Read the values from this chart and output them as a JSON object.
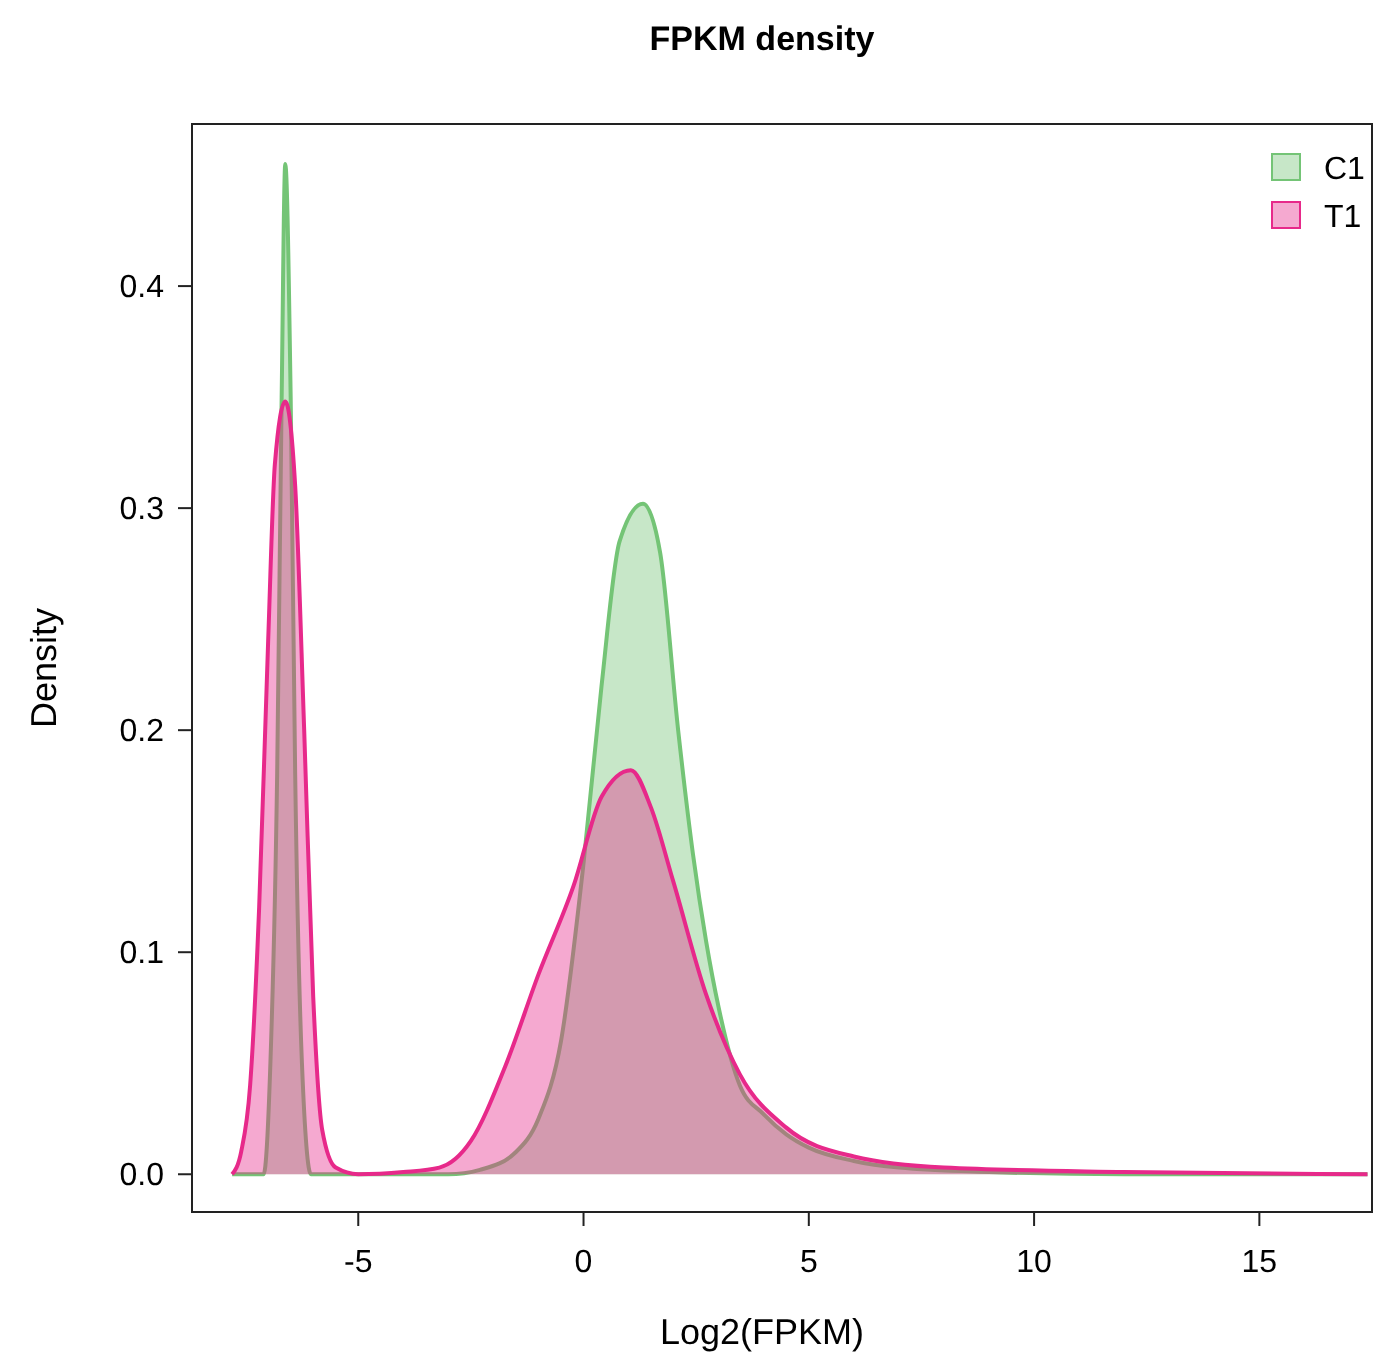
{
  "chart_data": {
    "type": "area",
    "title": "FPKM density",
    "xlabel": "Log2(FPKM)",
    "ylabel": "Density",
    "xlim": [
      -8.69,
      17.5
    ],
    "ylim": [
      -0.017,
      0.473
    ],
    "xticks": [
      -5,
      0,
      5,
      10,
      15
    ],
    "yticks": [
      {
        "value": 0,
        "label": "0.0"
      },
      {
        "value": 0.1,
        "label": "0.1"
      },
      {
        "value": 0.2,
        "label": "0.2"
      },
      {
        "value": 0.3,
        "label": "0.3"
      },
      {
        "value": 0.4,
        "label": "0.4"
      }
    ],
    "grid": false,
    "legend": "top right",
    "line_style": "solid",
    "series": [
      {
        "name": "C1",
        "color": "#74c476",
        "x": [
          -7.8,
          -7.1,
          -6.95,
          -6.8,
          -6.7,
          -6.62,
          -6.5,
          -6.4,
          -6.25,
          -6.05,
          -3,
          -2.3,
          -1.5,
          -1,
          -0.5,
          0,
          0.4,
          0.8,
          1.32,
          1.7,
          2.1,
          2.43,
          2.72,
          3,
          3.47,
          4,
          4.5,
          5,
          6,
          7,
          9,
          12,
          17.4
        ],
        "values": [
          0,
          0,
          0.05,
          0.18,
          0.35,
          0.455,
          0.35,
          0.18,
          0.05,
          0,
          0,
          0.002,
          0.01,
          0.025,
          0.06,
          0.14,
          0.22,
          0.285,
          0.302,
          0.28,
          0.2,
          0.144,
          0.105,
          0.075,
          0.04,
          0.027,
          0.018,
          0.012,
          0.006,
          0.003,
          0.001,
          0,
          0
        ]
      },
      {
        "name": "T1",
        "color": "#e7298a",
        "x": [
          -7.8,
          -7.6,
          -7.4,
          -7.2,
          -7,
          -6.85,
          -6.62,
          -6.4,
          -6.2,
          -6,
          -5.8,
          -5.5,
          -5,
          -4,
          -3.2,
          -2.5,
          -1.73,
          -1,
          -0.22,
          0.4,
          1.05,
          1.5,
          1.99,
          2.72,
          3.47,
          4.5,
          6,
          8,
          12,
          17.4
        ],
        "values": [
          0,
          0.01,
          0.04,
          0.12,
          0.24,
          0.32,
          0.348,
          0.31,
          0.2,
          0.08,
          0.02,
          0.003,
          0,
          0.001,
          0.003,
          0.015,
          0.049,
          0.09,
          0.13,
          0.17,
          0.182,
          0.165,
          0.132,
          0.081,
          0.045,
          0.021,
          0.008,
          0.003,
          0.001,
          0
        ]
      }
    ]
  }
}
